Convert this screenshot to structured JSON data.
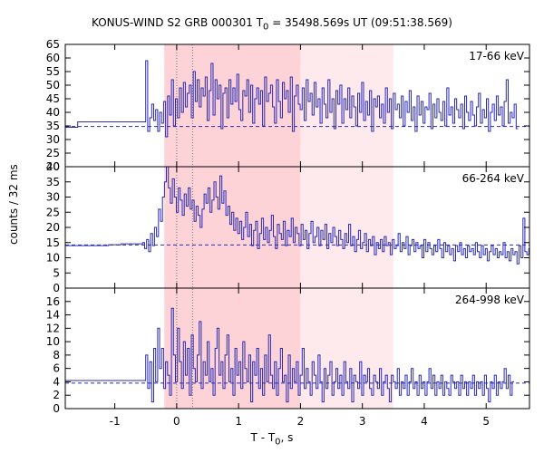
{
  "figure": {
    "title_prefix": "KONUS-WIND S2 GRB 000301 T",
    "title_sub": "0",
    "title_suffix": " = 35498.569s UT (09:51:38.569)",
    "ylabel": "counts / 32 ms",
    "xlabel_prefix": "T - T",
    "xlabel_sub": "0",
    "xlabel_suffix": ", s"
  },
  "chart_data": {
    "type": "line",
    "x_range": [
      -1.8,
      5.7
    ],
    "x_ticks": [
      -1,
      0,
      1,
      2,
      3,
      4,
      5
    ],
    "bin_width_s": 0.032,
    "colors": {
      "series": "#2b2bb0",
      "background_line": "#2b2bb0",
      "band_dark": "#fdd3d8",
      "band_light": "#feeaec",
      "marker": "#777777"
    },
    "shaded_intervals": [
      {
        "from": -0.2,
        "to": 2.0,
        "shade": "dark"
      },
      {
        "from": 2.0,
        "to": 3.5,
        "shade": "light"
      }
    ],
    "marker_lines": [
      0.0,
      0.256
    ],
    "panels": [
      {
        "name": "17-66 keV",
        "ylim": [
          20,
          65
        ],
        "yticks": [
          20,
          25,
          30,
          35,
          40,
          45,
          50,
          55,
          60,
          65
        ],
        "background": 34.8,
        "pre_steps": [
          [
            -1.8,
            34.5
          ],
          [
            -1.6,
            36.5
          ]
        ],
        "t_start": -0.5,
        "values": [
          59,
          33,
          38,
          43,
          37,
          41,
          33,
          40,
          36,
          44,
          31,
          46,
          39,
          52,
          35,
          45,
          38,
          49,
          40,
          51,
          42,
          47,
          50,
          38,
          55,
          44,
          52,
          42,
          49,
          46,
          53,
          37,
          48,
          58,
          39,
          52,
          45,
          50,
          34,
          47,
          49,
          38,
          52,
          43,
          49,
          44,
          54,
          41,
          37,
          48,
          46,
          52,
          40,
          50,
          36,
          45,
          49,
          43,
          48,
          35,
          53,
          44,
          47,
          50,
          42,
          36,
          52,
          44,
          38,
          51,
          45,
          48,
          40,
          53,
          33,
          46,
          50,
          43,
          41,
          49,
          37,
          52,
          44,
          47,
          39,
          51,
          42,
          45,
          36,
          49,
          43,
          38,
          52,
          40,
          45,
          34,
          48,
          43,
          50,
          36,
          45,
          41,
          49,
          38,
          46,
          42,
          35,
          47,
          40,
          51,
          37,
          44,
          39,
          48,
          33,
          45,
          42,
          46,
          38,
          43,
          36,
          49,
          40,
          45,
          34,
          47,
          41,
          43,
          38,
          46,
          35,
          44,
          40,
          48,
          37,
          42,
          33,
          46,
          39,
          44,
          36,
          42,
          41,
          47,
          34,
          43,
          38,
          45,
          40,
          37,
          44,
          35,
          49,
          39,
          42,
          36,
          45,
          41,
          38,
          43,
          34,
          46,
          40,
          37,
          44,
          39,
          35,
          42,
          47,
          36,
          41,
          38,
          45,
          33,
          40,
          43,
          37,
          46,
          39,
          42,
          35,
          44,
          52,
          36,
          40,
          38,
          43,
          34
        ]
      },
      {
        "name": "66-264 keV",
        "ylim": [
          0,
          40
        ],
        "yticks": [
          0,
          5,
          10,
          15,
          20,
          25,
          30,
          35,
          40
        ],
        "background": 14.2,
        "pre_steps": [
          [
            -1.8,
            14.0
          ],
          [
            -1.1,
            14.3
          ],
          [
            -0.9,
            14.6
          ]
        ],
        "t_start": -0.55,
        "values": [
          15,
          13,
          16,
          12,
          18,
          14,
          20,
          17,
          26,
          22,
          30,
          35,
          40,
          33,
          28,
          36,
          30,
          25,
          33,
          29,
          24,
          31,
          27,
          33,
          26,
          29,
          22,
          27,
          24,
          20,
          26,
          31,
          28,
          33,
          25,
          29,
          35,
          30,
          26,
          37,
          28,
          32,
          24,
          27,
          21,
          25,
          19,
          23,
          18,
          22,
          16,
          20,
          25,
          17,
          21,
          14,
          19,
          22,
          13,
          18,
          23,
          16,
          20,
          15,
          19,
          24,
          17,
          13,
          21,
          18,
          16,
          22,
          14,
          19,
          17,
          23,
          15,
          20,
          18,
          14,
          21,
          16,
          19,
          13,
          18,
          22,
          15,
          17,
          20,
          14,
          19,
          16,
          21,
          13,
          18,
          15,
          20,
          17,
          14,
          19,
          16,
          13,
          18,
          15,
          21,
          14,
          17,
          12,
          16,
          19,
          13,
          15,
          18,
          12,
          16,
          14,
          17,
          11,
          15,
          13,
          16,
          12,
          17,
          14,
          15,
          11,
          16,
          13,
          14,
          18,
          12,
          15,
          13,
          17,
          11,
          14,
          16,
          12,
          15,
          13,
          14,
          10,
          16,
          12,
          15,
          13,
          11,
          14,
          12,
          16,
          13,
          10,
          15,
          12,
          14,
          11,
          13,
          9,
          14,
          12,
          15,
          11,
          13,
          10,
          14,
          12,
          13,
          11,
          15,
          12,
          10,
          14,
          11,
          13,
          9,
          12,
          14,
          11,
          13,
          10,
          12,
          11,
          15,
          10,
          12,
          9,
          13,
          11,
          12,
          8,
          14,
          10,
          23,
          12,
          11,
          13,
          7,
          10,
          12,
          9
        ]
      },
      {
        "name": "264-998 keV",
        "ylim": [
          0,
          18
        ],
        "yticks": [
          0,
          2,
          4,
          6,
          8,
          10,
          12,
          14,
          16
        ],
        "background": 3.8,
        "pre_steps": [
          [
            -1.8,
            4.2
          ]
        ],
        "t_start": -0.5,
        "values": [
          8,
          3,
          7,
          1,
          9,
          4,
          12,
          6,
          9,
          3,
          7,
          5,
          2,
          15,
          8,
          4,
          12,
          7,
          3,
          10,
          5,
          9,
          2,
          11,
          6,
          4,
          8,
          13,
          3,
          7,
          5,
          10,
          4,
          6,
          2,
          9,
          12,
          5,
          7,
          3,
          8,
          11,
          4,
          6,
          2,
          9,
          5,
          7,
          3,
          10,
          6,
          4,
          8,
          1,
          7,
          5,
          9,
          3,
          6,
          2,
          8,
          4,
          11,
          5,
          3,
          7,
          2,
          6,
          9,
          4,
          5,
          1,
          8,
          3,
          6,
          4,
          7,
          2,
          5,
          9,
          3,
          6,
          4,
          2,
          7,
          5,
          3,
          8,
          4,
          1,
          6,
          3,
          5,
          7,
          2,
          4,
          6,
          3,
          5,
          2,
          7,
          4,
          3,
          6,
          1,
          5,
          4,
          3,
          7,
          2,
          5,
          4,
          6,
          3,
          2,
          5,
          4,
          3,
          6,
          2,
          4,
          5,
          3,
          1,
          5,
          4,
          3,
          6,
          2,
          4,
          3,
          5,
          2,
          4,
          6,
          3,
          4,
          2,
          5,
          3,
          4,
          2,
          4,
          6,
          3,
          5,
          2,
          4,
          3,
          5,
          2,
          4,
          3,
          2,
          5,
          4,
          3,
          4,
          2,
          5,
          3,
          4,
          2,
          4,
          3,
          5,
          2,
          4,
          3,
          4,
          2,
          5,
          3,
          1,
          4,
          3,
          5,
          2,
          4,
          3,
          4,
          6,
          3,
          5,
          2,
          4
        ]
      }
    ]
  }
}
